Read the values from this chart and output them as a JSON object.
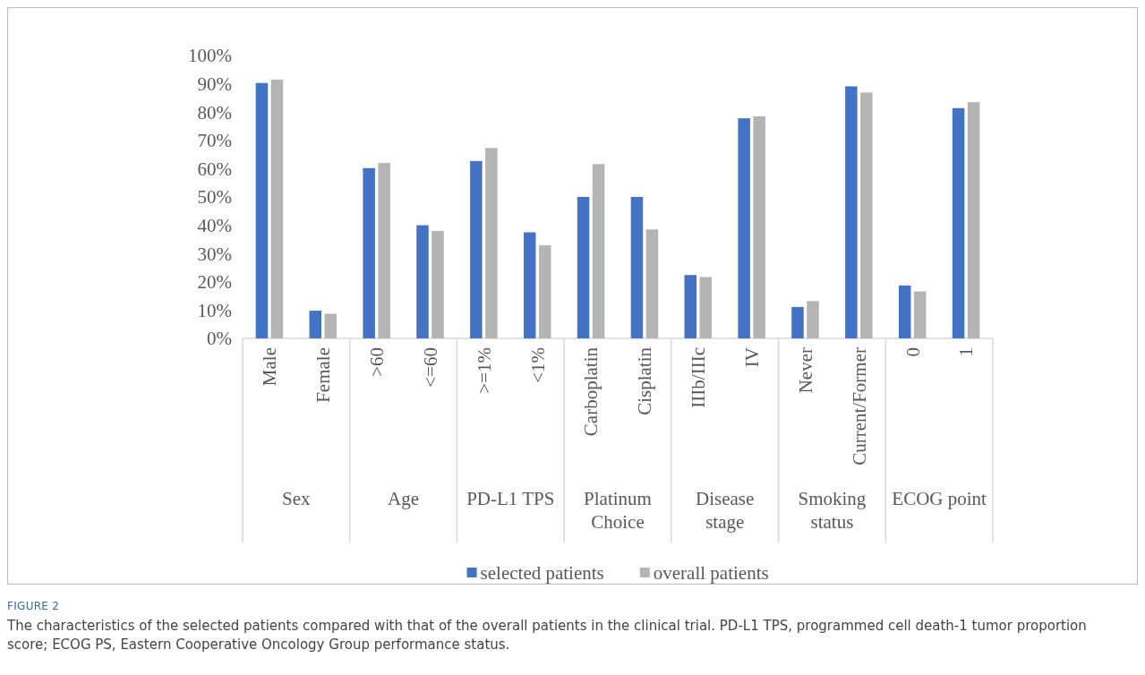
{
  "chart_data": {
    "type": "bar",
    "title": "FIGURE 2",
    "subtitle": "The characteristics of the selected patients compared with that of the overall patients in the clinical trial. PD-L1 TPS, programmed cell death-1 tumor proportion score; ECOG PS, Eastern Cooperative Oncology Group performance status.",
    "categories": [
      "Male",
      "Female",
      ">60",
      "<=60",
      ">=1%",
      "<1%",
      "Carboplatin",
      "Cisplatin",
      "IIIb/IIIc",
      "IV",
      "Never",
      "Current/Former",
      "0",
      "1"
    ],
    "annotations": [
      "Sex",
      "Age",
      "PD-L1 TPS",
      "Platinum Choice",
      "Disease stage",
      "Smoking status",
      "ECOG point"
    ],
    "series": [
      {
        "name": "selected patients",
        "color": "#4472c4",
        "values": [
          90.3,
          9.8,
          60.2,
          40,
          62.7,
          37.5,
          50,
          50,
          22.4,
          77.8,
          11.1,
          89.1,
          18.7,
          81.4
        ]
      },
      {
        "name": "overall patients",
        "color": "#b4b4b4",
        "values": [
          91.5,
          8.7,
          62,
          38,
          67.3,
          32.9,
          61.6,
          38.5,
          21.7,
          78.5,
          13.2,
          86.9,
          16.6,
          83.5
        ]
      }
    ],
    "ylim": [
      0,
      100
    ],
    "yticks": [
      {
        "value": 0,
        "label": "0%"
      },
      {
        "value": 10,
        "label": "10%"
      },
      {
        "value": 20,
        "label": "20%"
      },
      {
        "value": 30,
        "label": "30%"
      },
      {
        "value": 40,
        "label": "40%"
      },
      {
        "value": 50,
        "label": "50%"
      },
      {
        "value": 60,
        "label": "60%"
      },
      {
        "value": 70,
        "label": "70%"
      },
      {
        "value": 80,
        "label": "80%"
      },
      {
        "value": 90,
        "label": "90%"
      },
      {
        "value": 100,
        "label": "100%"
      }
    ],
    "legend": "bottom"
  }
}
